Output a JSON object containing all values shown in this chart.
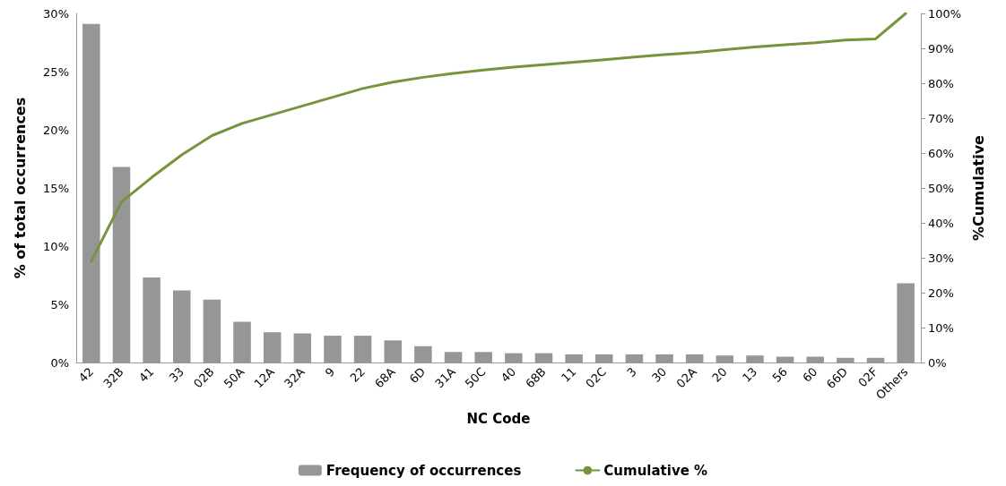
{
  "chart_data": {
    "type": "bar",
    "xlabel": "NC Code",
    "ylabel": "% of total occurrences",
    "y2label": "%Cumulative",
    "categories": [
      "42",
      "32B",
      "41",
      "33",
      "02B",
      "50A",
      "12A",
      "32A",
      "9",
      "22",
      "68A",
      "6D",
      "31A",
      "50C",
      "40",
      "68B",
      "11",
      "02C",
      "3",
      "30",
      "02A",
      "20",
      "13",
      "56",
      "60",
      "66D",
      "02F",
      "Others"
    ],
    "series": [
      {
        "name": "Frequency of occurrences",
        "color": "#969696",
        "values": [
          29.1,
          16.8,
          7.3,
          6.2,
          5.4,
          3.5,
          2.6,
          2.5,
          2.3,
          2.3,
          1.9,
          1.4,
          0.9,
          0.9,
          0.8,
          0.8,
          0.7,
          0.7,
          0.7,
          0.7,
          0.7,
          0.6,
          0.6,
          0.5,
          0.5,
          0.4,
          0.4,
          6.8
        ]
      },
      {
        "name": "Cumulative %",
        "type": "line",
        "axis": "y2",
        "color": "#77933c",
        "values": [
          29,
          46,
          53,
          59.5,
          65,
          68.5,
          71,
          73.5,
          76,
          78.5,
          80.3,
          81.7,
          82.8,
          83.8,
          84.6,
          85.3,
          86,
          86.7,
          87.5,
          88.2,
          88.8,
          89.6,
          90.4,
          91,
          91.6,
          92.4,
          92.7,
          100
        ]
      }
    ],
    "ylim": [
      0,
      30
    ],
    "yticks": [
      {
        "value": 0,
        "label": "0%"
      },
      {
        "value": 5,
        "label": "5%"
      },
      {
        "value": 10,
        "label": "10%"
      },
      {
        "value": 15,
        "label": "15%"
      },
      {
        "value": 20,
        "label": "20%"
      },
      {
        "value": 25,
        "label": "25%"
      },
      {
        "value": 30,
        "label": "30%"
      }
    ],
    "y2lim": [
      0,
      100
    ],
    "y2ticks": [
      {
        "value": 0,
        "label": "0%"
      },
      {
        "value": 10,
        "label": "10%"
      },
      {
        "value": 20,
        "label": "20%"
      },
      {
        "value": 30,
        "label": "30%"
      },
      {
        "value": 40,
        "label": "40%"
      },
      {
        "value": 50,
        "label": "50%"
      },
      {
        "value": 60,
        "label": "60%"
      },
      {
        "value": 70,
        "label": "70%"
      },
      {
        "value": 80,
        "label": "80%"
      },
      {
        "value": 90,
        "label": "90%"
      },
      {
        "value": 100,
        "label": "100%"
      }
    ],
    "grid": false,
    "legend": "bottom",
    "marker": "none",
    "line_style": "solid"
  }
}
